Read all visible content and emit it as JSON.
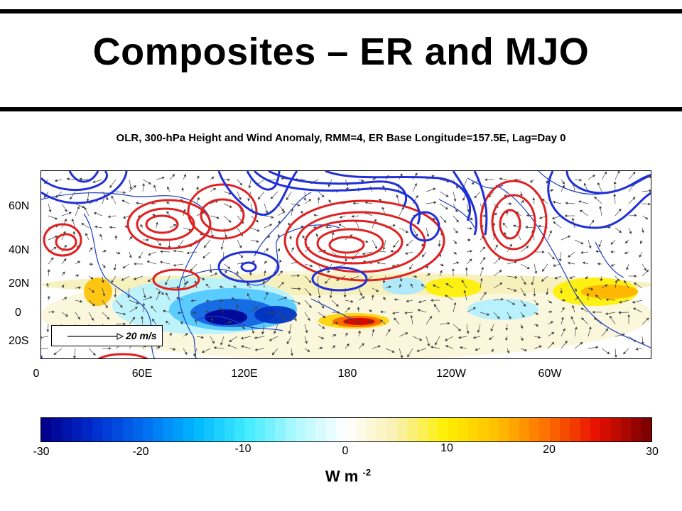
{
  "title": "Composites – ER and MJO",
  "subtitle": "OLR, 300-hPa Height and Wind Anomaly, RMM=4, ER Base Longitude=157.5E, Lag=Day 0",
  "map": {
    "lat_labels": [
      "60N",
      "40N",
      "20N",
      "0",
      "20S"
    ],
    "lon_labels": [
      "0",
      "60E",
      "120E",
      "180",
      "120W",
      "60W"
    ],
    "vector_scale_label": "20 m/s"
  },
  "colorbar": {
    "tick_labels": [
      "-30",
      "-20",
      "-10",
      "0",
      "10",
      "20",
      "30"
    ],
    "range": [
      -30,
      30
    ],
    "units_base": "W m",
    "units_exp": "-2"
  },
  "colors": {
    "positive_height_contour": "#e02020",
    "negative_height_contour": "#2030d8",
    "coastline": "#1a3cc8",
    "colormap": [
      "#00008f",
      "#0030d0",
      "#0070f0",
      "#00b8ff",
      "#40ecff",
      "#b0f8ff",
      "#ffffff",
      "#f8f0b0",
      "#fff000",
      "#ffc000",
      "#ff7000",
      "#e81000",
      "#800000"
    ]
  }
}
